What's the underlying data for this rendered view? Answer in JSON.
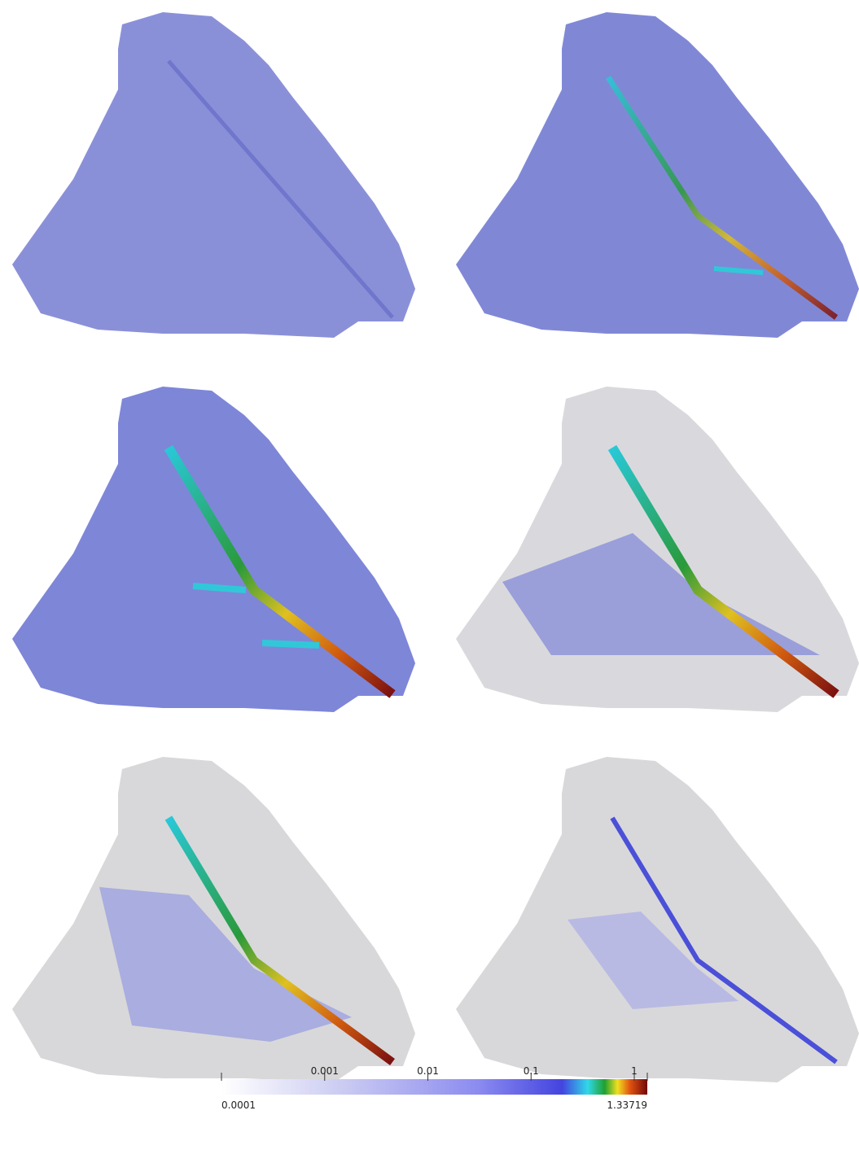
{
  "colorbar": {
    "log_scale": true,
    "range": [
      0.0001,
      1.33719
    ],
    "ticks": [
      0.001,
      0.01,
      0.1,
      1
    ]
  }
}
